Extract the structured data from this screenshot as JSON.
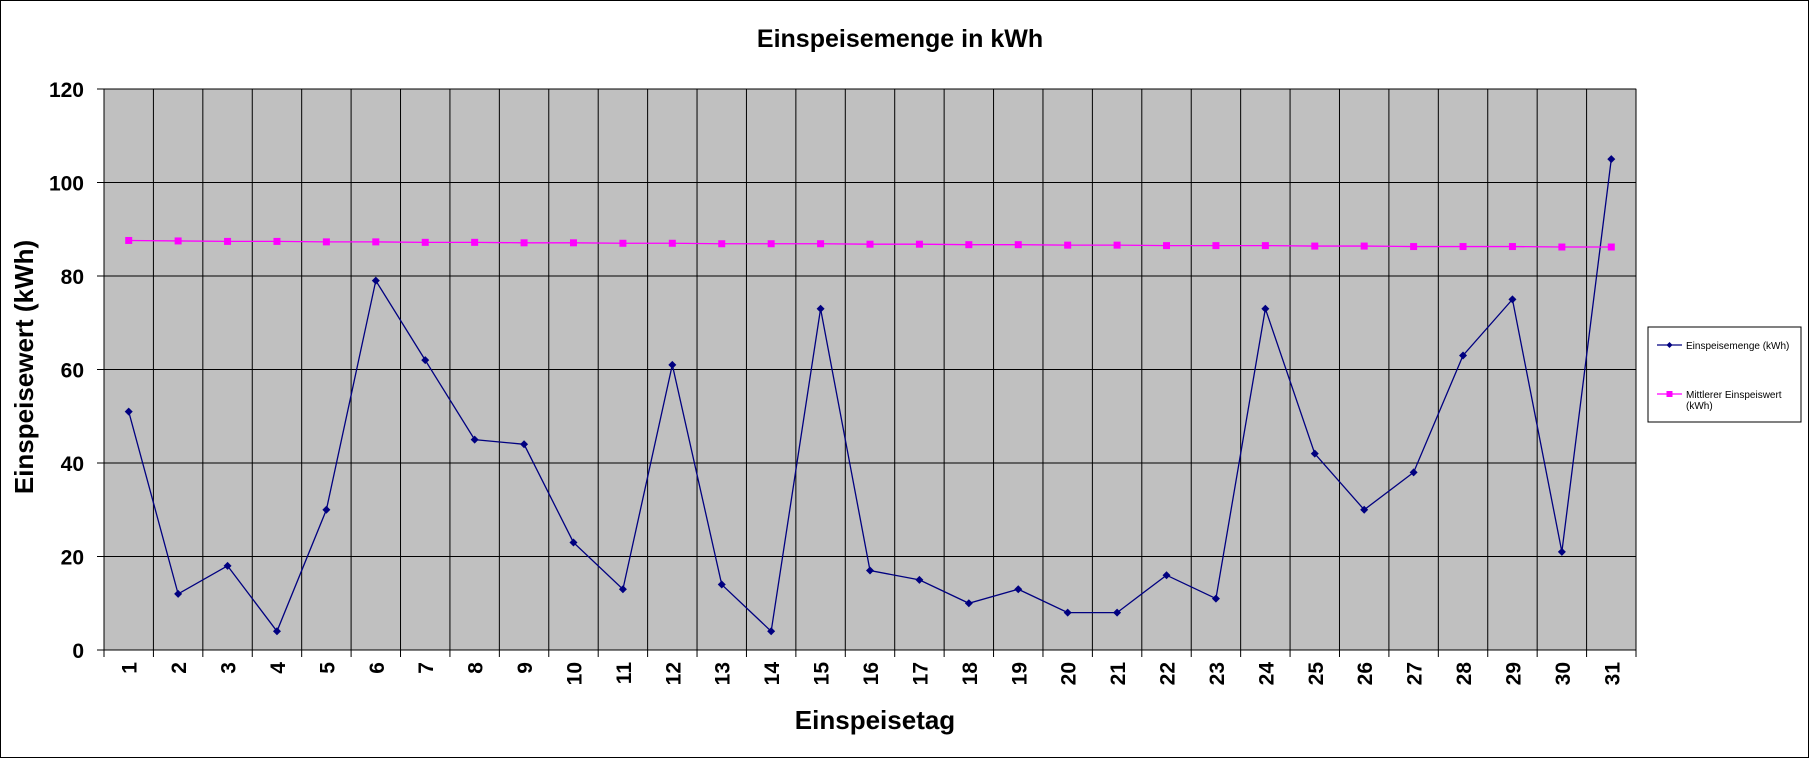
{
  "chart_data": {
    "type": "line",
    "title": "Einspeisemenge in kWh",
    "xlabel": "Einspeisetag",
    "ylabel": "Einspeisewert  (kWh)",
    "ylim": [
      0,
      120
    ],
    "yticks": [
      0,
      20,
      40,
      60,
      80,
      100,
      120
    ],
    "grid": true,
    "legend_position": "right",
    "plot_background": "#c0c0c0",
    "categories": [
      "1",
      "2",
      "3",
      "4",
      "5",
      "6",
      "7",
      "8",
      "9",
      "10",
      "11",
      "12",
      "13",
      "14",
      "15",
      "16",
      "17",
      "18",
      "19",
      "20",
      "21",
      "22",
      "23",
      "24",
      "25",
      "26",
      "27",
      "28",
      "29",
      "30",
      "31"
    ],
    "series": [
      {
        "name": "Einspeisemenge (kWh)",
        "color": "#000080",
        "marker": "diamond",
        "values": [
          51,
          12,
          18,
          4,
          30,
          79,
          62,
          45,
          44,
          23,
          13,
          61,
          14,
          4,
          73,
          17,
          15,
          10,
          13,
          8,
          8,
          16,
          11,
          73,
          42,
          30,
          38,
          63,
          75,
          21,
          105
        ]
      },
      {
        "name": "Mittlerer Einspeiswert\n(kWh)",
        "color": "#ff00ff",
        "marker": "square",
        "values": [
          87.6,
          87.5,
          87.4,
          87.4,
          87.3,
          87.3,
          87.2,
          87.2,
          87.1,
          87.1,
          87.0,
          87.0,
          86.9,
          86.9,
          86.9,
          86.8,
          86.8,
          86.7,
          86.7,
          86.6,
          86.6,
          86.5,
          86.5,
          86.5,
          86.4,
          86.4,
          86.3,
          86.3,
          86.3,
          86.2,
          86.2
        ]
      }
    ]
  }
}
